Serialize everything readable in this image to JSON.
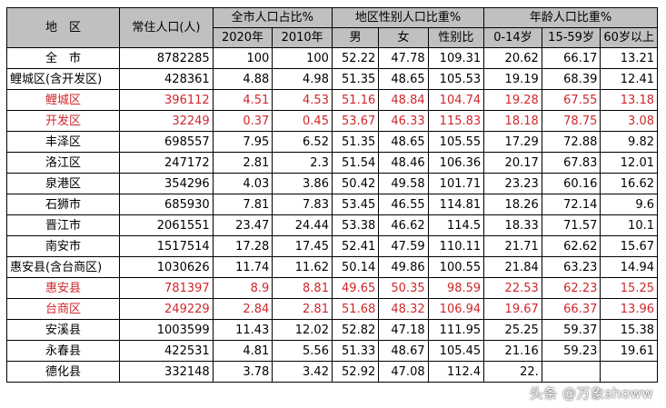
{
  "header": {
    "region": "地　区",
    "population": "常住人口(人)",
    "share_group": "全市人口占比%",
    "share_2020": "2020年",
    "share_2010": "2010年",
    "sex_group": "地区性别人口比重%",
    "male": "男",
    "female": "女",
    "sex_ratio": "性别比",
    "age_group": "年龄人口比重%",
    "age_0_14": "0-14岁",
    "age_15_59": "15-59岁",
    "age_60": "60岁以上"
  },
  "rows": [
    {
      "name": "全　市",
      "pop": "8782285",
      "s2020": "100",
      "s2010": "100",
      "male": "52.22",
      "female": "47.78",
      "ratio": "109.31",
      "a1": "20.62",
      "a2": "66.17",
      "a3": "13.21"
    },
    {
      "name": "鲤城区(含开发区)",
      "pop": "428361",
      "s2020": "4.88",
      "s2010": "4.98",
      "male": "51.35",
      "female": "48.65",
      "ratio": "105.53",
      "a1": "19.19",
      "a2": "68.39",
      "a3": "12.41"
    },
    {
      "name": "鲤城区",
      "pop": "396112",
      "s2020": "4.51",
      "s2010": "4.53",
      "male": "51.16",
      "female": "48.84",
      "ratio": "104.74",
      "a1": "19.28",
      "a2": "67.55",
      "a3": "13.18"
    },
    {
      "name": "开发区",
      "pop": "32249",
      "s2020": "0.37",
      "s2010": "0.45",
      "male": "53.67",
      "female": "46.33",
      "ratio": "115.83",
      "a1": "18.18",
      "a2": "78.75",
      "a3": "3.08"
    },
    {
      "name": "丰泽区",
      "pop": "698557",
      "s2020": "7.95",
      "s2010": "6.52",
      "male": "51.35",
      "female": "48.65",
      "ratio": "105.55",
      "a1": "17.29",
      "a2": "72.88",
      "a3": "9.82"
    },
    {
      "name": "洛江区",
      "pop": "247172",
      "s2020": "2.81",
      "s2010": "2.3",
      "male": "51.54",
      "female": "48.46",
      "ratio": "106.36",
      "a1": "20.17",
      "a2": "67.83",
      "a3": "12.01"
    },
    {
      "name": "泉港区",
      "pop": "354296",
      "s2020": "4.03",
      "s2010": "3.86",
      "male": "50.42",
      "female": "49.58",
      "ratio": "101.71",
      "a1": "23.23",
      "a2": "60.16",
      "a3": "16.62"
    },
    {
      "name": "石狮市",
      "pop": "685930",
      "s2020": "7.81",
      "s2010": "7.83",
      "male": "53.45",
      "female": "46.55",
      "ratio": "114.81",
      "a1": "18.26",
      "a2": "72.14",
      "a3": "9.6"
    },
    {
      "name": "晋江市",
      "pop": "2061551",
      "s2020": "23.47",
      "s2010": "24.44",
      "male": "53.38",
      "female": "46.62",
      "ratio": "114.5",
      "a1": "18.33",
      "a2": "71.57",
      "a3": "10.1"
    },
    {
      "name": "南安市",
      "pop": "1517514",
      "s2020": "17.28",
      "s2010": "17.45",
      "male": "52.41",
      "female": "47.59",
      "ratio": "110.11",
      "a1": "21.71",
      "a2": "62.62",
      "a3": "15.67"
    },
    {
      "name": "惠安县(含台商区)",
      "pop": "1030626",
      "s2020": "11.74",
      "s2010": "11.62",
      "male": "50.14",
      "female": "49.86",
      "ratio": "100.55",
      "a1": "21.84",
      "a2": "63.23",
      "a3": "14.94"
    },
    {
      "name": "惠安县",
      "pop": "781397",
      "s2020": "8.9",
      "s2010": "8.81",
      "male": "49.65",
      "female": "50.35",
      "ratio": "98.59",
      "a1": "22.53",
      "a2": "62.23",
      "a3": "15.25"
    },
    {
      "name": "台商区",
      "pop": "249229",
      "s2020": "2.84",
      "s2010": "2.81",
      "male": "51.68",
      "female": "48.32",
      "ratio": "106.94",
      "a1": "19.67",
      "a2": "66.37",
      "a3": "13.96"
    },
    {
      "name": "安溪县",
      "pop": "1003599",
      "s2020": "11.43",
      "s2010": "12.02",
      "male": "52.82",
      "female": "47.18",
      "ratio": "111.95",
      "a1": "25.25",
      "a2": "59.37",
      "a3": "15.38"
    },
    {
      "name": "永春县",
      "pop": "422531",
      "s2020": "4.81",
      "s2010": "5.56",
      "male": "51.33",
      "female": "48.67",
      "ratio": "105.45",
      "a1": "21.16",
      "a2": "59.23",
      "a3": "19.61"
    },
    {
      "name": "德化县",
      "pop": "332148",
      "s2020": "3.78",
      "s2010": "3.42",
      "male": "52.92",
      "female": "47.08",
      "ratio": "112.4",
      "a1": "22.",
      "a2": "",
      "a3": ""
    }
  ],
  "watermark": "头条 @万象showw",
  "colors": {
    "header_bg": "#c0c0c0",
    "highlight_red": "#d0262b"
  }
}
